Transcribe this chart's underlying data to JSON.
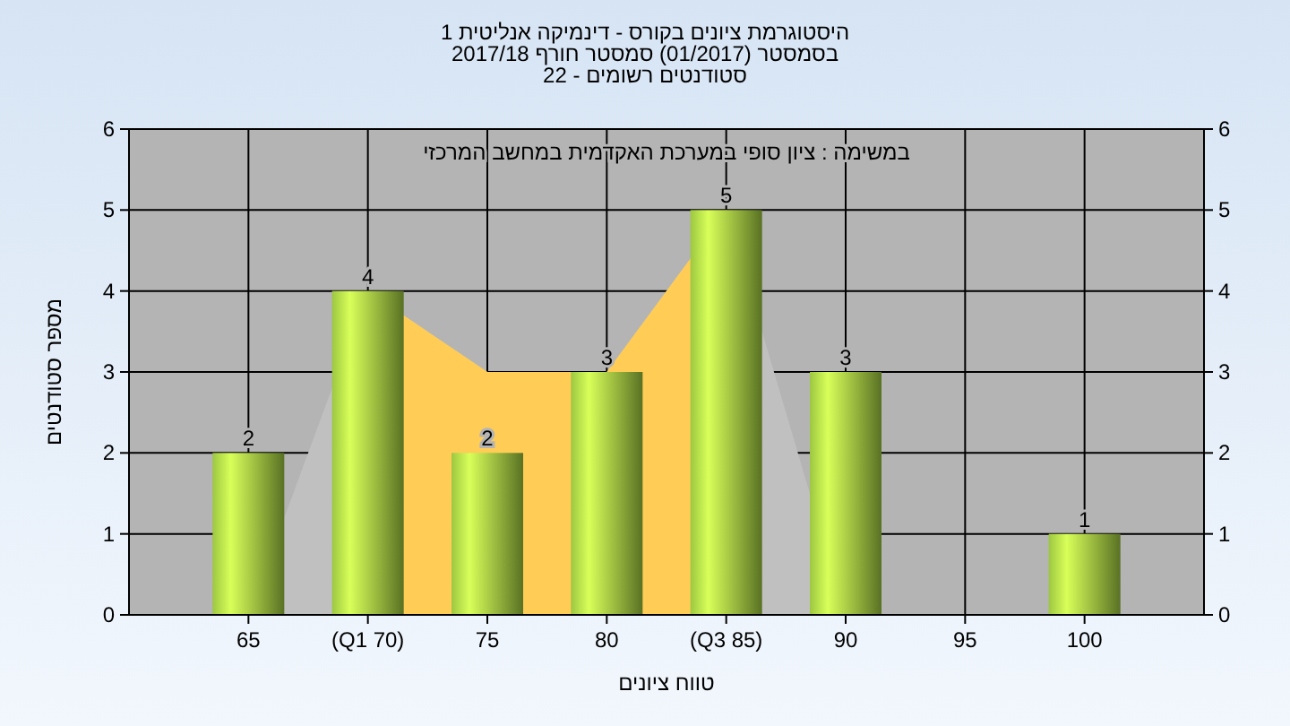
{
  "chart_data": {
    "type": "bar",
    "title": "היסטוגרמת ציונים בקורס - דינמיקה אנליטית 1",
    "subtitle": "בסמסטר  (01/2017)  סמסטר חורף 2017/18\nסטודנטים רשומים - 22",
    "xlabel": "טווח ציונים",
    "ylabel": "מספר סטודנטים",
    "annotations": [
      "במשימה : ציון סופי במערכת האקדמית במחשב המרכזי"
    ],
    "categories": [
      "65",
      "(Q1 70)",
      "75",
      "80",
      "(Q3 85)",
      "90",
      "95",
      "100"
    ],
    "series": [
      {
        "type": "area",
        "color": "#c0c0c0",
        "values": [
          0,
          4,
          3,
          3,
          5,
          0,
          null,
          null
        ]
      },
      {
        "type": "area",
        "color": "#ffcc55",
        "values": [
          null,
          4,
          3,
          3,
          5,
          null,
          null,
          null
        ]
      },
      {
        "color": "#8db33a",
        "values": [
          2,
          4,
          2,
          3,
          5,
          3,
          null,
          1
        ],
        "value_labels": [
          "2",
          "4",
          "2",
          "3",
          "5",
          "3",
          null,
          "1"
        ]
      }
    ],
    "ylim": [
      0,
      6
    ],
    "yticks": [
      0,
      1,
      2,
      3,
      4,
      5,
      6
    ],
    "y2lim": [
      0,
      6
    ],
    "y2ticks": [
      0,
      1,
      2,
      3,
      4,
      5,
      6
    ],
    "grid": true
  }
}
